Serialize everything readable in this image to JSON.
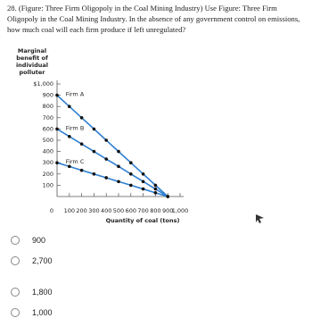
{
  "question": "28. (Figure: Three Firm Oligopoly in the Coal Mining Industry) Use Figure: Three Firm Oligopoly in the Coal Mining Industry. In the absence of any government control on emissions, how much coal will each firm produce if left unregulated?",
  "chart_data": {
    "type": "line",
    "y_label": [
      "Marginal",
      "benefit of",
      "individual",
      "polluter"
    ],
    "x_label": "Quantity of coal (tons)",
    "x": [
      0,
      100,
      200,
      300,
      400,
      500,
      600,
      700,
      800,
      900
    ],
    "series": [
      {
        "name": "Firm A",
        "color": "#2f7fd1",
        "values": [
          900,
          800,
          700,
          600,
          500,
          400,
          300,
          200,
          100,
          0
        ]
      },
      {
        "name": "Firm B",
        "color": "#2f7fd1",
        "values": [
          600,
          533,
          467,
          400,
          333,
          267,
          200,
          133,
          67,
          0
        ]
      },
      {
        "name": "Firm C",
        "color": "#2f7fd1",
        "values": [
          300,
          267,
          233,
          200,
          167,
          133,
          100,
          67,
          33,
          0
        ]
      }
    ],
    "xlim": [
      0,
      1000
    ],
    "ylim": [
      0,
      1000
    ],
    "xticks": [
      0,
      100,
      200,
      300,
      400,
      500,
      600,
      700,
      800,
      900,
      {
        "value": 1000,
        "label": "1,000"
      }
    ],
    "yticks": [
      100,
      200,
      300,
      400,
      500,
      600,
      700,
      800,
      900,
      {
        "value": 1000,
        "label": "$1,000"
      }
    ]
  },
  "options": [
    "900",
    "2,700",
    "1,800",
    "1,000"
  ]
}
